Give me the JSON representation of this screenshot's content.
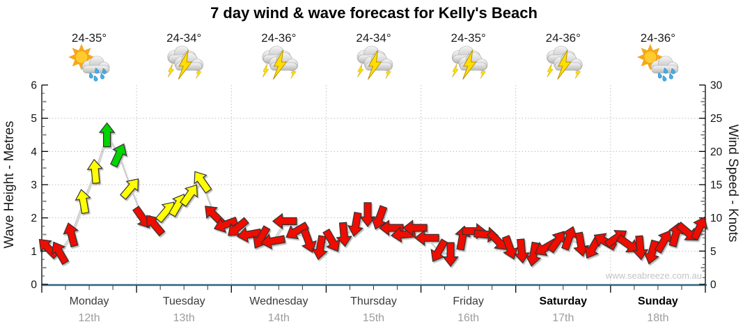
{
  "title": "7 day wind & wave forecast for Kelly's Beach",
  "watermark": "www.seabreeze.com.au",
  "colors": {
    "arrow_red": "#ee0a00",
    "arrow_yellow": "#ffff00",
    "arrow_green": "#00d500",
    "axis_bottom": "#2f627f",
    "grid": "#bdbdbd",
    "connector": "#c9c9c9"
  },
  "days": [
    {
      "name": "Monday",
      "date": "12th",
      "temp": "24-35°",
      "icon": "sunrain",
      "bold": false
    },
    {
      "name": "Tuesday",
      "date": "13th",
      "temp": "24-34°",
      "icon": "storm",
      "bold": false
    },
    {
      "name": "Wednesday",
      "date": "14th",
      "temp": "24-36°",
      "icon": "storm",
      "bold": false
    },
    {
      "name": "Thursday",
      "date": "15th",
      "temp": "24-34°",
      "icon": "storm",
      "bold": false
    },
    {
      "name": "Friday",
      "date": "16th",
      "temp": "24-35°",
      "icon": "storm",
      "bold": false
    },
    {
      "name": "Saturday",
      "date": "17th",
      "temp": "24-36°",
      "icon": "storm",
      "bold": true
    },
    {
      "name": "Sunday",
      "date": "18th",
      "temp": "24-36°",
      "icon": "sunrain",
      "bold": true
    }
  ],
  "chart_data": {
    "type": "wind-direction-arrows",
    "title": "7 day wind & wave forecast for Kelly's Beach",
    "x_axis": {
      "categories": [
        "Monday 12th",
        "Tuesday 13th",
        "Wednesday 14th",
        "Thursday 15th",
        "Friday 16th",
        "Saturday 17th",
        "Sunday 18th"
      ],
      "minor_ticks_per_day": 4
    },
    "y_axis_left": {
      "label": "Wave Height - Metres",
      "min": 0,
      "max": 6,
      "ticks": [
        0,
        1,
        2,
        3,
        4,
        5,
        6
      ]
    },
    "y_axis_right": {
      "label": "Wind Speed - Knots",
      "min": 0,
      "max": 30,
      "ticks": [
        0,
        5,
        10,
        15,
        20,
        25,
        30
      ]
    },
    "grid": true,
    "wind_arrows": {
      "columns": [
        "day_index",
        "slot_index",
        "speed_knots",
        "direction_deg_cw_from_up",
        "color"
      ],
      "slots_per_day": 8,
      "slot_hours": 3,
      "points": [
        [
          0,
          0,
          5.5,
          -45,
          "red"
        ],
        [
          0,
          1,
          4.8,
          -30,
          "red"
        ],
        [
          0,
          2,
          7.5,
          -15,
          "red"
        ],
        [
          0,
          3,
          12.5,
          -10,
          "yellow"
        ],
        [
          0,
          4,
          17,
          -5,
          "yellow"
        ],
        [
          0,
          5,
          22.5,
          0,
          "green"
        ],
        [
          0,
          6,
          19.5,
          25,
          "green"
        ],
        [
          0,
          7,
          14.5,
          40,
          "yellow"
        ],
        [
          1,
          0,
          10,
          145,
          "red"
        ],
        [
          1,
          1,
          9,
          -40,
          "red"
        ],
        [
          1,
          2,
          11,
          40,
          "yellow"
        ],
        [
          1,
          3,
          12,
          30,
          "yellow"
        ],
        [
          1,
          4,
          13.5,
          35,
          "yellow"
        ],
        [
          1,
          5,
          15.5,
          -35,
          "yellow"
        ],
        [
          1,
          6,
          10.5,
          -45,
          "red"
        ],
        [
          1,
          7,
          9,
          -110,
          "red"
        ],
        [
          2,
          0,
          8.5,
          -130,
          "red"
        ],
        [
          2,
          1,
          7.5,
          -100,
          "red"
        ],
        [
          2,
          2,
          7,
          -150,
          "red"
        ],
        [
          2,
          3,
          6.5,
          -100,
          "red"
        ],
        [
          2,
          4,
          9.5,
          -90,
          "red"
        ],
        [
          2,
          5,
          8,
          -120,
          "red"
        ],
        [
          2,
          6,
          6.5,
          160,
          "red"
        ],
        [
          2,
          7,
          5.5,
          -170,
          "red"
        ],
        [
          3,
          0,
          6.5,
          150,
          "red"
        ],
        [
          3,
          1,
          7.5,
          175,
          "red"
        ],
        [
          3,
          2,
          9,
          -170,
          "red"
        ],
        [
          3,
          3,
          10.5,
          180,
          "red"
        ],
        [
          3,
          4,
          10,
          -160,
          "red"
        ],
        [
          3,
          5,
          8.5,
          -90,
          "red"
        ],
        [
          3,
          6,
          7.5,
          -95,
          "red"
        ],
        [
          3,
          7,
          8.5,
          -90,
          "red"
        ],
        [
          4,
          0,
          7,
          -90,
          "red"
        ],
        [
          4,
          1,
          5,
          -150,
          "red"
        ],
        [
          4,
          2,
          4.5,
          180,
          "red"
        ],
        [
          4,
          3,
          7,
          10,
          "red"
        ],
        [
          4,
          4,
          8,
          90,
          "red"
        ],
        [
          4,
          5,
          7.5,
          95,
          "red"
        ],
        [
          4,
          6,
          6.5,
          135,
          "red"
        ],
        [
          4,
          7,
          5.5,
          160,
          "red"
        ],
        [
          5,
          0,
          5,
          175,
          "red"
        ],
        [
          5,
          1,
          4.5,
          -170,
          "red"
        ],
        [
          5,
          2,
          5.5,
          -120,
          "red"
        ],
        [
          5,
          3,
          6.5,
          35,
          "red"
        ],
        [
          5,
          4,
          7,
          20,
          "red"
        ],
        [
          5,
          5,
          6,
          170,
          "red"
        ],
        [
          5,
          6,
          5.5,
          -150,
          "red"
        ],
        [
          5,
          7,
          6.5,
          -60,
          "red"
        ],
        [
          6,
          0,
          7,
          55,
          "red"
        ],
        [
          6,
          1,
          6,
          125,
          "red"
        ],
        [
          6,
          2,
          5.5,
          175,
          "red"
        ],
        [
          6,
          3,
          4.8,
          -165,
          "red"
        ],
        [
          6,
          4,
          6.5,
          30,
          "red"
        ],
        [
          6,
          5,
          7.5,
          15,
          "red"
        ],
        [
          6,
          6,
          7.8,
          130,
          "red"
        ],
        [
          6,
          7,
          8.5,
          25,
          "red"
        ]
      ]
    }
  }
}
